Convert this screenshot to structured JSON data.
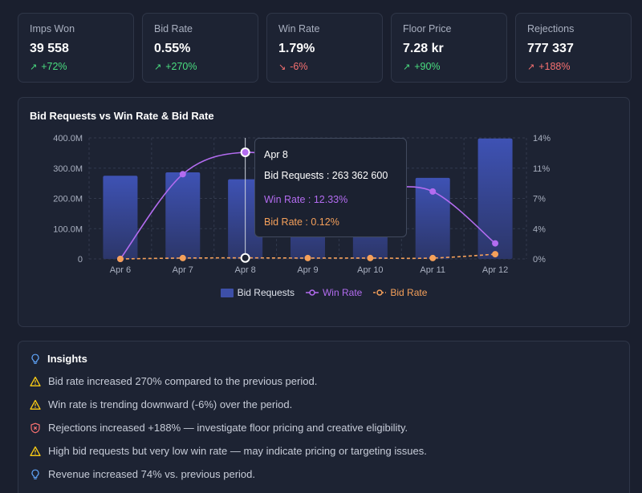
{
  "kpis": [
    {
      "label": "Imps Won",
      "value": "39 558",
      "delta": "+72%",
      "trend": "up"
    },
    {
      "label": "Bid Rate",
      "value": "0.55%",
      "delta": "+270%",
      "trend": "up"
    },
    {
      "label": "Win Rate",
      "value": "1.79%",
      "delta": "-6%",
      "trend": "down"
    },
    {
      "label": "Floor Price",
      "value": "7.28 kr",
      "delta": "+90%",
      "trend": "up"
    },
    {
      "label": "Rejections",
      "value": "777 337",
      "delta": "+188%",
      "trend": "down-bad"
    }
  ],
  "chart": {
    "title": "Bid Requests vs Win Rate & Bid Rate"
  },
  "chart_data": {
    "type": "bar",
    "title": "Bid Requests vs Win Rate & Bid Rate",
    "categories": [
      "Apr 6",
      "Apr 7",
      "Apr 8",
      "Apr 9",
      "Apr 10",
      "Apr 11",
      "Apr 12"
    ],
    "left_ticks": [
      "400.0M",
      "300.0M",
      "200.0M",
      "100.0M",
      "0"
    ],
    "right_ticks": [
      "14%",
      "11%",
      "7%",
      "4%",
      "0%"
    ],
    "ylim_left": [
      0,
      400000000
    ],
    "ylim_right": [
      0,
      14
    ],
    "series": [
      {
        "name": "Bid Requests",
        "kind": "bar",
        "axis": "left",
        "color": "#3d4fa8",
        "values": [
          275000000,
          286000000,
          263362600,
          250000000,
          262000000,
          268000000,
          398000000
        ]
      },
      {
        "name": "Win Rate",
        "kind": "line",
        "axis": "right",
        "color": "#b36cf0",
        "values": [
          0,
          9.8,
          12.33,
          10.6,
          8.4,
          7.8,
          1.8
        ]
      },
      {
        "name": "Bid Rate",
        "kind": "line",
        "axis": "right",
        "color": "#f5a05a",
        "values": [
          0,
          0.1,
          0.12,
          0.1,
          0.1,
          0.1,
          0.55
        ]
      }
    ],
    "grid": true,
    "legend": "bottom-center",
    "highlight_index": 2
  },
  "tooltip": {
    "date": "Apr 8",
    "requests": "Bid Requests : 263 362 600",
    "win": "Win Rate : 12.33%",
    "bid": "Bid Rate : 0.12%"
  },
  "insights": {
    "title": "Insights",
    "items": [
      {
        "icon": "warning-icon",
        "text": "Bid rate increased 270% compared to the previous period."
      },
      {
        "icon": "warning-icon",
        "text": "Win rate is trending downward (-6%) over the period."
      },
      {
        "icon": "shield-alert-icon",
        "text": "Rejections increased +188% — investigate floor pricing and creative eligibility."
      },
      {
        "icon": "warning-icon",
        "text": "High bid requests but very low win rate — may indicate pricing or targeting issues."
      },
      {
        "icon": "lightbulb-icon",
        "text": "Revenue increased 74% vs. previous period."
      }
    ]
  },
  "colors": {
    "up": "#4ade80",
    "down": "#f87171",
    "bars": "#3d4fa8",
    "win": "#b36cf0",
    "bid": "#f5a05a",
    "warning": "#facc15"
  }
}
